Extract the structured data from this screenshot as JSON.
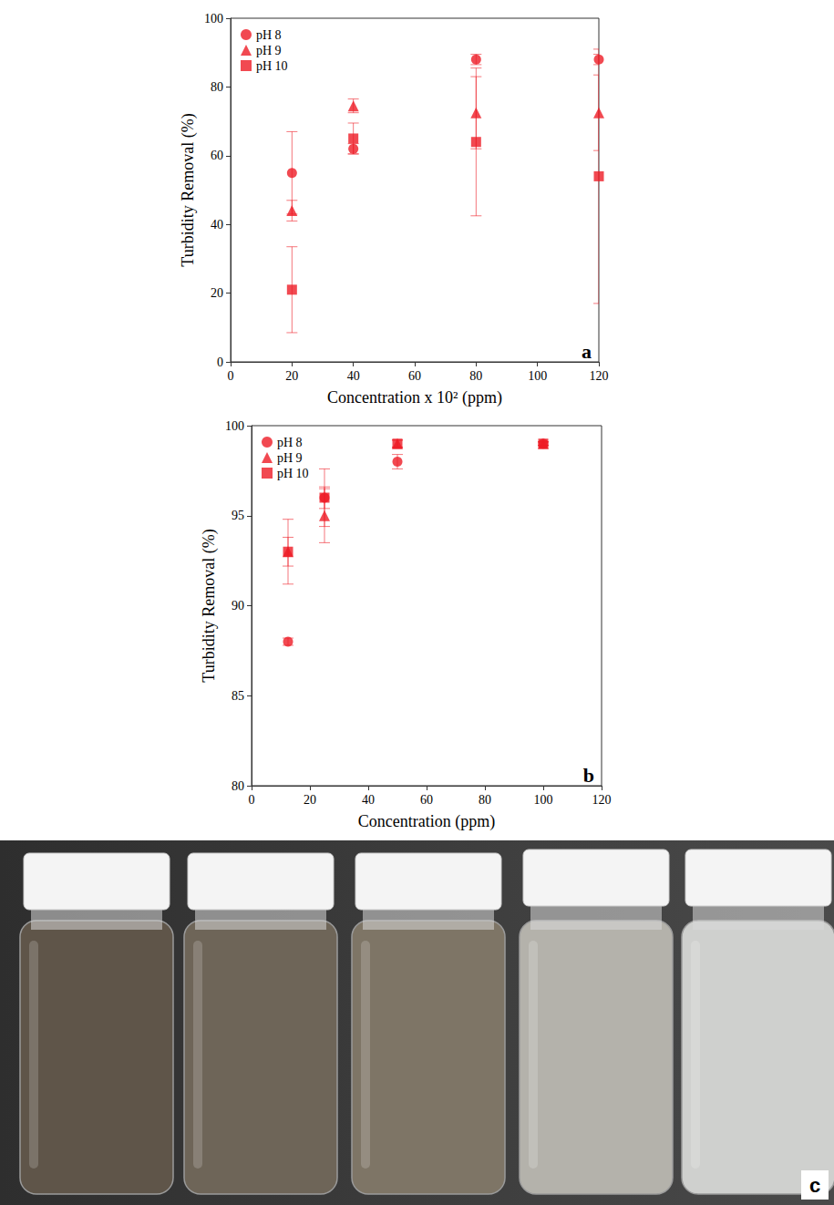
{
  "chart_data": [
    {
      "type": "scatter",
      "panel": "a",
      "x_label": "Concentration x 10² (ppm)",
      "y_label": "Turbidity Removal (%)",
      "x": [
        20,
        40,
        80,
        120
      ],
      "xlim": [
        0,
        120
      ],
      "xticks": [
        0,
        20,
        40,
        60,
        80,
        100,
        120
      ],
      "ylim": [
        0,
        100
      ],
      "yticks": [
        0,
        20,
        40,
        60,
        80,
        100
      ],
      "grid": false,
      "legend": "upper left",
      "series": [
        {
          "name": "pH 8",
          "color": "#ee1c25",
          "marker": "circle",
          "values": [
            55,
            62,
            88,
            88
          ],
          "errors": [
            12,
            1.5,
            1.5,
            1.5
          ]
        },
        {
          "name": "pH 9",
          "color": "#ee1c25",
          "marker": "triangle",
          "values": [
            44,
            74.5,
            72.5,
            72.5
          ],
          "errors": [
            3,
            2,
            10.5,
            11
          ]
        },
        {
          "name": "pH 10",
          "color": "#ee1c25",
          "marker": "square",
          "values": [
            21,
            65,
            64,
            54
          ],
          "errors": [
            12.5,
            4.5,
            21.5,
            37
          ]
        }
      ]
    },
    {
      "type": "scatter",
      "panel": "b",
      "x_label": "Concentration (ppm)",
      "y_label": "Turbidity Removal (%)",
      "x": [
        12.5,
        25,
        50,
        100
      ],
      "xlim": [
        0,
        120
      ],
      "xticks": [
        0,
        20,
        40,
        60,
        80,
        100,
        120
      ],
      "ylim": [
        80,
        100
      ],
      "yticks": [
        80,
        85,
        90,
        95,
        100
      ],
      "grid": false,
      "legend": "upper left",
      "series": [
        {
          "name": "pH 8",
          "color": "#ee1c25",
          "marker": "circle",
          "values": [
            88,
            96,
            98,
            99
          ],
          "errors": [
            0.2,
            0.6,
            0.4,
            0.1
          ]
        },
        {
          "name": "pH 9",
          "color": "#ee1c25",
          "marker": "triangle",
          "values": [
            93,
            95,
            99,
            99
          ],
          "errors": [
            0.8,
            1.5,
            0.2,
            0.1
          ]
        },
        {
          "name": "pH 10",
          "color": "#ee1c25",
          "marker": "square",
          "values": [
            93,
            96,
            99,
            99
          ],
          "errors": [
            1.8,
            1.6,
            0.2,
            0.1
          ]
        }
      ]
    }
  ],
  "photo": {
    "panel": "c"
  }
}
